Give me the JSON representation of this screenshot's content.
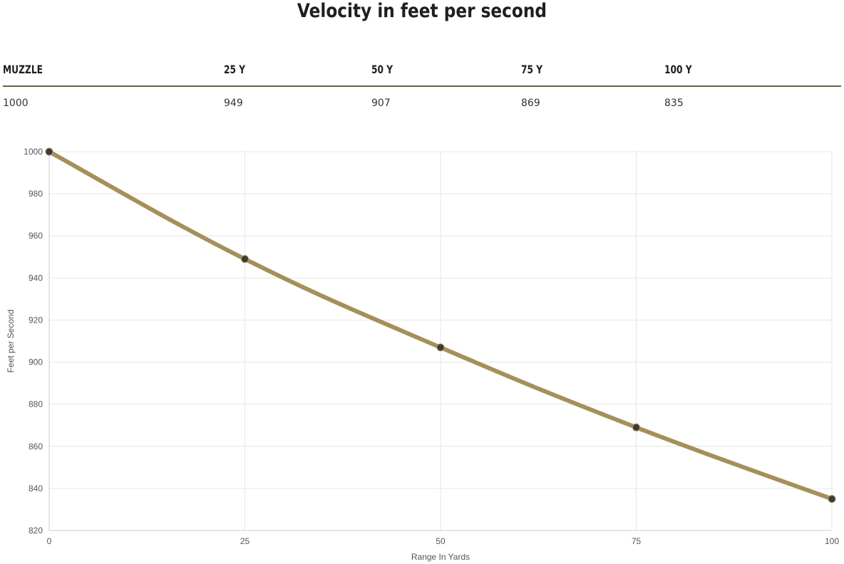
{
  "title": "Velocity in feet per second",
  "table": {
    "headers": [
      "MUZZLE",
      "25 Y",
      "50 Y",
      "75 Y",
      "100 Y"
    ],
    "values": [
      "1000",
      "949",
      "907",
      "869",
      "835"
    ]
  },
  "chart_data": {
    "type": "line",
    "title": "",
    "xlabel": "Range In Yards",
    "ylabel": "Feet per Second",
    "x": [
      0,
      25,
      50,
      75,
      100
    ],
    "xticks": [
      "0",
      "25",
      "50",
      "75",
      "100"
    ],
    "yticks": [
      "820",
      "840",
      "860",
      "880",
      "900",
      "920",
      "940",
      "960",
      "980",
      "1000"
    ],
    "series": [
      {
        "values": [
          1000,
          949,
          907,
          869,
          835
        ]
      }
    ],
    "xlim": [
      0,
      100
    ],
    "ylim": [
      820,
      1000
    ],
    "grid": true,
    "colors": {
      "line": "#a68f5a",
      "point": "#3a3a3a",
      "grid": "#e6e6e6",
      "axis": "#cccccc",
      "tick_text": "#555555"
    }
  }
}
